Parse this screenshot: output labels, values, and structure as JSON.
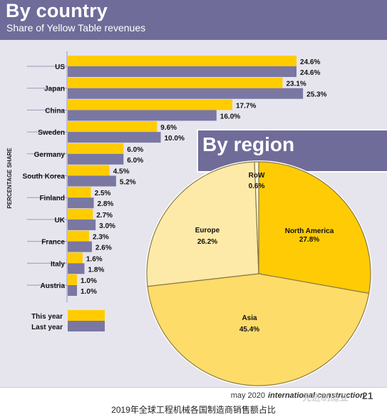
{
  "header": {
    "title": "By country",
    "subtitle": "Share of Yellow Table revenues"
  },
  "footer": {
    "issue": "may 2020",
    "magazine": "international construction",
    "page": "21",
    "caption": "2019年全球工程机械各国制造商销售额占比",
    "watermark": "先进制造业"
  },
  "colors": {
    "header_bg": "#6f6c9a",
    "panel_bg": "#e6e5ee",
    "this_year": "#ffcc00",
    "last_year": "#7a77a3",
    "pie_north_america": "#ffcb05",
    "pie_asia": "#fedc6a",
    "pie_europe": "#fdeaa9",
    "pie_row": "#fef6d8"
  },
  "chart_data": [
    {
      "type": "bar",
      "orientation": "horizontal",
      "title": "By country",
      "subtitle": "Share of Yellow Table revenues",
      "ylabel": "PERCENTAGE SHARE",
      "categories": [
        "US",
        "Japan",
        "China",
        "Sweden",
        "Germany",
        "South Korea",
        "Finland",
        "UK",
        "France",
        "Italy",
        "Austria"
      ],
      "series": [
        {
          "name": "This year",
          "values": [
            24.6,
            23.1,
            17.7,
            9.6,
            6.0,
            4.5,
            2.5,
            2.7,
            2.3,
            1.6,
            1.0
          ],
          "labels": [
            "24.6%",
            "23.1%",
            "17.7%",
            "9.6%",
            "6.0%",
            "4.5%",
            "2.5%",
            "2.7%",
            "2.3%",
            "1.6%",
            "1.0%"
          ]
        },
        {
          "name": "Last year",
          "values": [
            24.6,
            25.3,
            16.0,
            10.0,
            6.0,
            5.2,
            2.8,
            3.0,
            2.6,
            1.8,
            1.0
          ],
          "labels": [
            "24.6%",
            "25.3%",
            "16.0%",
            "10.0%",
            "6.0%",
            "5.2%",
            "2.8%",
            "3.0%",
            "2.6%",
            "1.8%",
            "1.0%"
          ]
        }
      ],
      "legend": "bottom-left"
    },
    {
      "type": "pie",
      "title": "By region",
      "slices": [
        {
          "label": "North America",
          "value": 27.8,
          "value_label": "27.8%"
        },
        {
          "label": "Asia",
          "value": 45.4,
          "value_label": "45.4%"
        },
        {
          "label": "Europe",
          "value": 26.2,
          "value_label": "26.2%"
        },
        {
          "label": "RoW",
          "value": 0.6,
          "value_label": "0.6%"
        }
      ]
    }
  ]
}
